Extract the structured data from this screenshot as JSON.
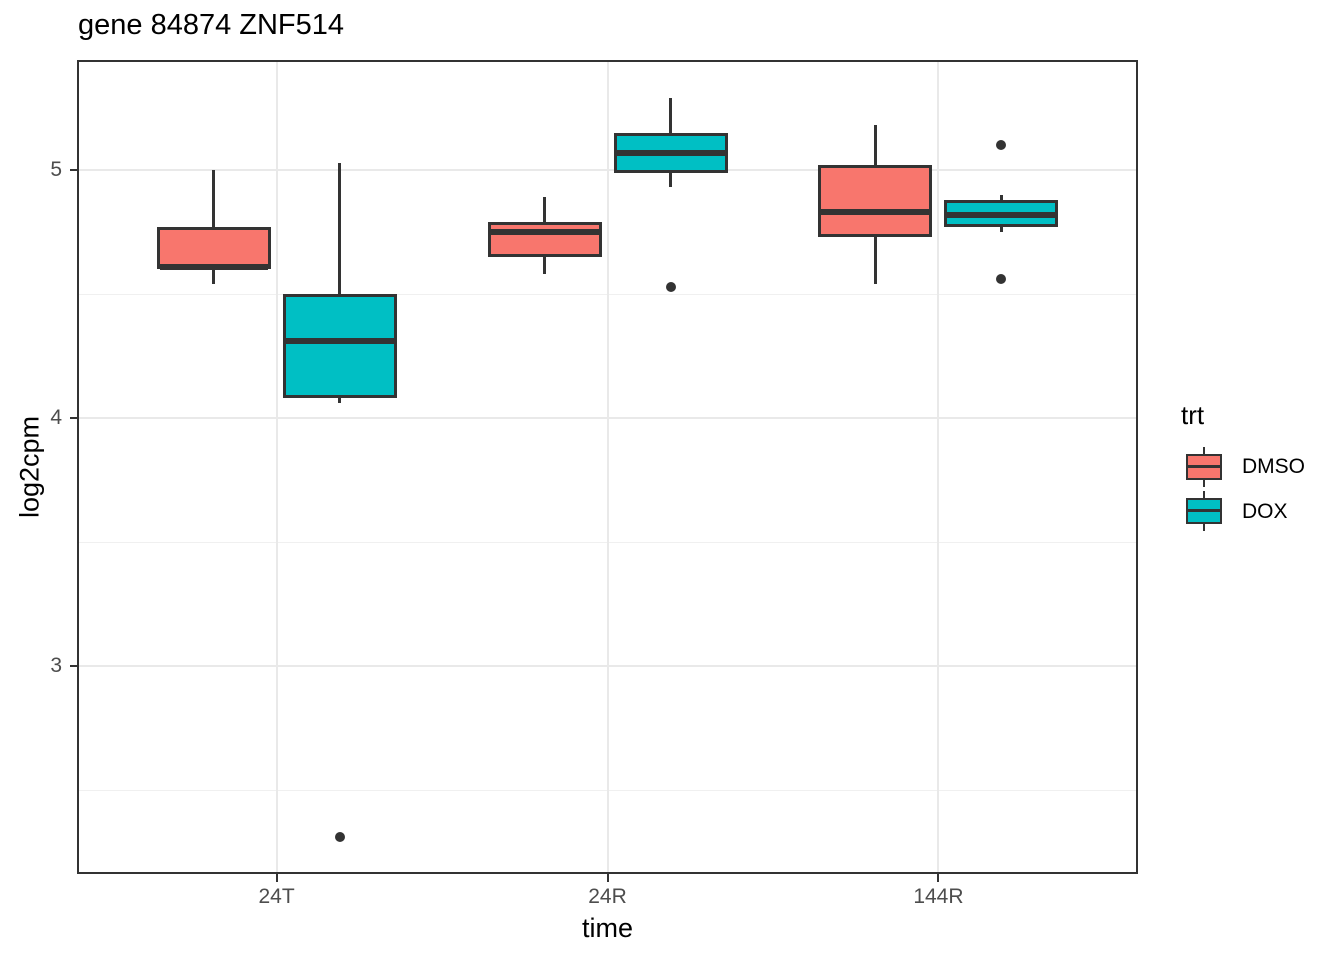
{
  "title": "gene 84874 ZNF514",
  "chart_data": {
    "type": "boxplot",
    "title": "gene 84874 ZNF514",
    "xlabel": "time",
    "ylabel": "log2cpm",
    "categories": [
      "24T",
      "24R",
      "144R"
    ],
    "y_axis": {
      "ticks": [
        5,
        4,
        3
      ],
      "tick_labels": [
        "5",
        "4",
        "3"
      ],
      "minor_ticks": [
        4.5,
        3.5,
        2.5
      ],
      "ylim": [
        2.17,
        5.44
      ],
      "grid": true
    },
    "legend": {
      "title": "trt",
      "position": "right",
      "entries": [
        {
          "label": "DMSO",
          "color": "#F8766D"
        },
        {
          "label": "DOX",
          "color": "#00BFC4"
        }
      ]
    },
    "series": [
      {
        "name": "DMSO",
        "color": "#F8766D",
        "boxes": [
          {
            "category": "24T",
            "whisker_low": 4.54,
            "q1": 4.6,
            "median": 4.61,
            "q3": 4.77,
            "whisker_high": 5.0,
            "outliers": []
          },
          {
            "category": "24R",
            "whisker_low": 4.58,
            "q1": 4.65,
            "median": 4.75,
            "q3": 4.79,
            "whisker_high": 4.89,
            "outliers": []
          },
          {
            "category": "144R",
            "whisker_low": 4.54,
            "q1": 4.73,
            "median": 4.83,
            "q3": 5.02,
            "whisker_high": 5.18,
            "outliers": []
          }
        ]
      },
      {
        "name": "DOX",
        "color": "#00BFC4",
        "boxes": [
          {
            "category": "24T",
            "whisker_low": 4.06,
            "q1": 4.08,
            "median": 4.31,
            "q3": 4.5,
            "whisker_high": 5.03,
            "outliers": [
              2.31
            ]
          },
          {
            "category": "24R",
            "whisker_low": 4.93,
            "q1": 4.99,
            "median": 5.07,
            "q3": 5.15,
            "whisker_high": 5.29,
            "outliers": [
              4.53
            ]
          },
          {
            "category": "144R",
            "whisker_low": 4.75,
            "q1": 4.77,
            "median": 4.82,
            "q3": 4.88,
            "whisker_high": 4.9,
            "outliers": [
              5.1,
              4.56
            ]
          }
        ]
      }
    ],
    "colors": {
      "box_border": "#333333",
      "outlier": "#333333",
      "grid_major": "#e9e9e9",
      "grid_minor": "#f0f0f0",
      "panel_border": "#333333",
      "axis_text": "#4d4d4d",
      "title_text": "#000000",
      "background": "#ffffff"
    }
  }
}
